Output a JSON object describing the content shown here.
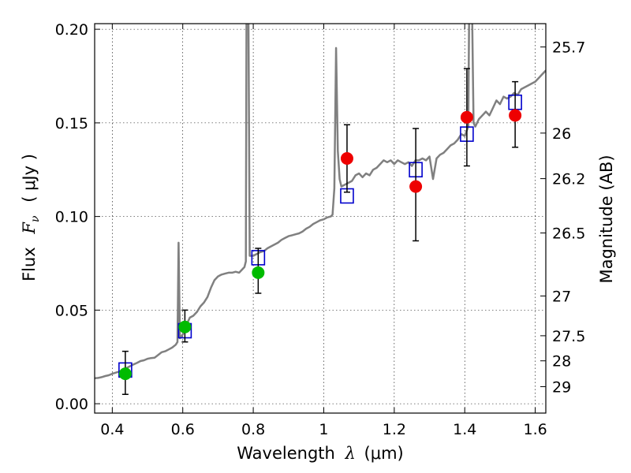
{
  "chart_data": {
    "type": "scatter",
    "xlabel": "Wavelength",
    "xlabel_symbol": "λ",
    "xlabel_unit": "(μm)",
    "ylabel": "Flux",
    "ylabel_symbol_main": "F",
    "ylabel_symbol_sub": "ν",
    "ylabel_unit": "( μJy )",
    "ylabel_right": "Magnitude (AB)",
    "xlim": [
      0.35,
      1.63
    ],
    "ylim": [
      -0.005,
      0.203
    ],
    "grid": true,
    "x_ticks": [
      {
        "value": 0.4,
        "label": "0.4"
      },
      {
        "value": 0.6,
        "label": "0.6"
      },
      {
        "value": 0.8,
        "label": "0.8"
      },
      {
        "value": 1.0,
        "label": "1"
      },
      {
        "value": 1.2,
        "label": "1.2"
      },
      {
        "value": 1.4,
        "label": "1.4"
      },
      {
        "value": 1.6,
        "label": "1.6"
      }
    ],
    "y_ticks": [
      {
        "value": 0.0,
        "label": "0.00"
      },
      {
        "value": 0.05,
        "label": "0.05"
      },
      {
        "value": 0.1,
        "label": "0.10"
      },
      {
        "value": 0.15,
        "label": "0.15"
      },
      {
        "value": 0.2,
        "label": "0.20"
      }
    ],
    "mag_ticks": [
      {
        "mag": 25.7,
        "label": "25.7"
      },
      {
        "mag": 26.0,
        "label": "26"
      },
      {
        "mag": 26.2,
        "label": "26.2"
      },
      {
        "mag": 26.5,
        "label": "26.5"
      },
      {
        "mag": 27.0,
        "label": "27"
      },
      {
        "mag": 27.5,
        "label": "27.5"
      },
      {
        "mag": 28.0,
        "label": "28"
      },
      {
        "mag": 29.0,
        "label": "29"
      }
    ],
    "colors": {
      "spectrum": "#808080",
      "model_points": "#0000cc",
      "green_points": "#00bb00",
      "red_points": "#ee0000",
      "errorbars": "#000000"
    },
    "series": [
      {
        "kind": "spectrum",
        "points": [
          [
            0.35,
            0.0136
          ],
          [
            0.36,
            0.0138
          ],
          [
            0.37,
            0.0142
          ],
          [
            0.38,
            0.0148
          ],
          [
            0.39,
            0.0152
          ],
          [
            0.4,
            0.016
          ],
          [
            0.41,
            0.0166
          ],
          [
            0.42,
            0.0172
          ],
          [
            0.43,
            0.0178
          ],
          [
            0.44,
            0.019
          ],
          [
            0.45,
            0.02
          ],
          [
            0.46,
            0.021
          ],
          [
            0.47,
            0.0218
          ],
          [
            0.48,
            0.0228
          ],
          [
            0.49,
            0.0232
          ],
          [
            0.5,
            0.024
          ],
          [
            0.51,
            0.0244
          ],
          [
            0.52,
            0.0246
          ],
          [
            0.53,
            0.026
          ],
          [
            0.54,
            0.0275
          ],
          [
            0.55,
            0.028
          ],
          [
            0.56,
            0.029
          ],
          [
            0.57,
            0.03
          ],
          [
            0.58,
            0.0315
          ],
          [
            0.585,
            0.033
          ],
          [
            0.588,
            0.086
          ],
          [
            0.592,
            0.035
          ],
          [
            0.6,
            0.037
          ],
          [
            0.61,
            0.042
          ],
          [
            0.62,
            0.046
          ],
          [
            0.63,
            0.047
          ],
          [
            0.64,
            0.049
          ],
          [
            0.65,
            0.052
          ],
          [
            0.66,
            0.054
          ],
          [
            0.67,
            0.057
          ],
          [
            0.68,
            0.062
          ],
          [
            0.69,
            0.066
          ],
          [
            0.7,
            0.068
          ],
          [
            0.71,
            0.069
          ],
          [
            0.72,
            0.0695
          ],
          [
            0.73,
            0.07
          ],
          [
            0.74,
            0.07
          ],
          [
            0.75,
            0.0705
          ],
          [
            0.76,
            0.07
          ],
          [
            0.77,
            0.072
          ],
          [
            0.775,
            0.073
          ],
          [
            0.779,
            0.076
          ],
          [
            0.781,
            0.22
          ],
          [
            0.786,
            0.22
          ],
          [
            0.79,
            0.079
          ],
          [
            0.8,
            0.079
          ],
          [
            0.81,
            0.08
          ],
          [
            0.82,
            0.081
          ],
          [
            0.83,
            0.0815
          ],
          [
            0.84,
            0.083
          ],
          [
            0.85,
            0.084
          ],
          [
            0.86,
            0.085
          ],
          [
            0.87,
            0.086
          ],
          [
            0.88,
            0.0875
          ],
          [
            0.89,
            0.0885
          ],
          [
            0.9,
            0.0895
          ],
          [
            0.91,
            0.09
          ],
          [
            0.92,
            0.0905
          ],
          [
            0.93,
            0.091
          ],
          [
            0.94,
            0.092
          ],
          [
            0.95,
            0.0935
          ],
          [
            0.96,
            0.0945
          ],
          [
            0.97,
            0.096
          ],
          [
            0.98,
            0.097
          ],
          [
            0.99,
            0.098
          ],
          [
            1.0,
            0.0985
          ],
          [
            1.01,
            0.0995
          ],
          [
            1.02,
            0.1
          ],
          [
            1.025,
            0.101
          ],
          [
            1.03,
            0.115
          ],
          [
            1.035,
            0.19
          ],
          [
            1.04,
            0.135
          ],
          [
            1.045,
            0.12
          ],
          [
            1.05,
            0.116
          ],
          [
            1.06,
            0.117
          ],
          [
            1.07,
            0.118
          ],
          [
            1.08,
            0.119
          ],
          [
            1.09,
            0.122
          ],
          [
            1.1,
            0.123
          ],
          [
            1.11,
            0.121
          ],
          [
            1.12,
            0.123
          ],
          [
            1.13,
            0.122
          ],
          [
            1.14,
            0.125
          ],
          [
            1.15,
            0.126
          ],
          [
            1.16,
            0.128
          ],
          [
            1.17,
            0.13
          ],
          [
            1.18,
            0.129
          ],
          [
            1.19,
            0.13
          ],
          [
            1.2,
            0.128
          ],
          [
            1.21,
            0.13
          ],
          [
            1.22,
            0.129
          ],
          [
            1.23,
            0.128
          ],
          [
            1.24,
            0.129
          ],
          [
            1.25,
            0.127
          ],
          [
            1.26,
            0.13
          ],
          [
            1.27,
            0.13
          ],
          [
            1.28,
            0.131
          ],
          [
            1.29,
            0.13
          ],
          [
            1.3,
            0.132
          ],
          [
            1.31,
            0.12
          ],
          [
            1.32,
            0.131
          ],
          [
            1.33,
            0.133
          ],
          [
            1.34,
            0.134
          ],
          [
            1.35,
            0.136
          ],
          [
            1.36,
            0.138
          ],
          [
            1.37,
            0.139
          ],
          [
            1.38,
            0.141
          ],
          [
            1.39,
            0.144
          ],
          [
            1.4,
            0.143
          ],
          [
            1.41,
            0.148
          ],
          [
            1.413,
            0.22
          ],
          [
            1.42,
            0.22
          ],
          [
            1.425,
            0.15
          ],
          [
            1.43,
            0.148
          ],
          [
            1.44,
            0.152
          ],
          [
            1.45,
            0.154
          ],
          [
            1.46,
            0.156
          ],
          [
            1.47,
            0.154
          ],
          [
            1.48,
            0.158
          ],
          [
            1.49,
            0.162
          ],
          [
            1.5,
            0.16
          ],
          [
            1.51,
            0.164
          ],
          [
            1.52,
            0.163
          ],
          [
            1.53,
            0.164
          ],
          [
            1.54,
            0.166
          ],
          [
            1.55,
            0.165
          ],
          [
            1.56,
            0.168
          ],
          [
            1.57,
            0.169
          ],
          [
            1.58,
            0.17
          ],
          [
            1.59,
            0.171
          ],
          [
            1.6,
            0.172
          ],
          [
            1.61,
            0.174
          ],
          [
            1.62,
            0.176
          ],
          [
            1.63,
            0.178
          ]
        ]
      },
      {
        "kind": "model_squares",
        "points": [
          [
            0.437,
            0.018
          ],
          [
            0.606,
            0.039
          ],
          [
            0.814,
            0.078
          ],
          [
            1.066,
            0.111
          ],
          [
            1.261,
            0.125
          ],
          [
            1.406,
            0.144
          ],
          [
            1.543,
            0.161
          ]
        ]
      },
      {
        "kind": "green_dots",
        "points": [
          {
            "x": 0.437,
            "y": 0.016,
            "ylo": 0.005,
            "yhi": 0.028
          },
          {
            "x": 0.606,
            "y": 0.041,
            "ylo": 0.033,
            "yhi": 0.05
          },
          {
            "x": 0.814,
            "y": 0.07,
            "ylo": 0.059,
            "yhi": 0.083
          }
        ]
      },
      {
        "kind": "red_dots",
        "points": [
          {
            "x": 1.066,
            "y": 0.131,
            "ylo": 0.113,
            "yhi": 0.149
          },
          {
            "x": 1.261,
            "y": 0.116,
            "ylo": 0.087,
            "yhi": 0.147
          },
          {
            "x": 1.406,
            "y": 0.153,
            "ylo": 0.127,
            "yhi": 0.179
          },
          {
            "x": 1.543,
            "y": 0.154,
            "ylo": 0.137,
            "yhi": 0.172
          }
        ]
      }
    ]
  }
}
